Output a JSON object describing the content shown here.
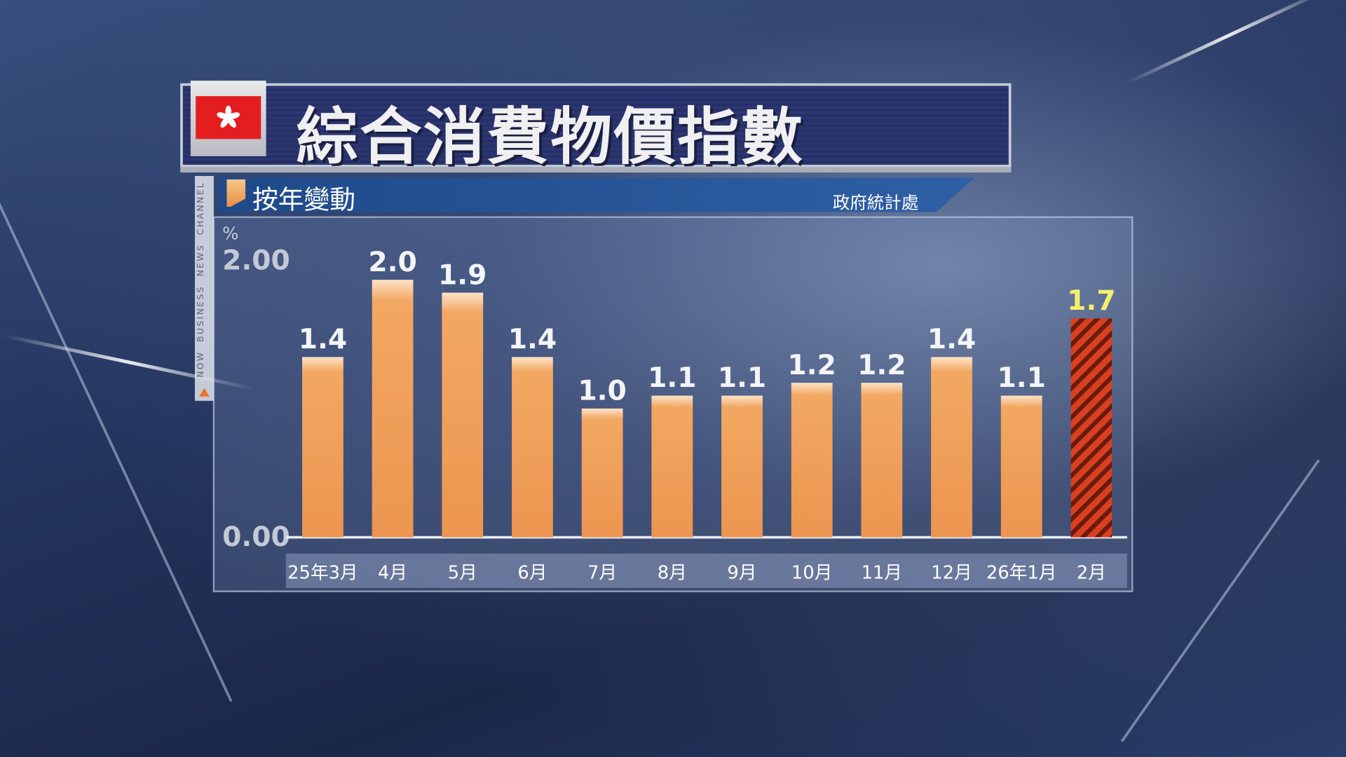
{
  "header": {
    "title": "綜合消費物價指數",
    "subtitle": "按年變動",
    "source": "政府統計處"
  },
  "branding": {
    "channel": "NOW BUSINESS NEWS CHANNEL"
  },
  "colors": {
    "bar": "#ee9a52",
    "highlight_bar": "#d23a1e",
    "highlight_stripe": "#6a1a10",
    "highlight_label": "#f4f06a",
    "title_bar": "#2a3470"
  },
  "chart_data": {
    "type": "bar",
    "title": "綜合消費物價指數",
    "subtitle": "按年變動",
    "ylabel": "%",
    "ylim": [
      0,
      2.0
    ],
    "yticks": [
      "0.00",
      "2.00"
    ],
    "grid": false,
    "categories": [
      "25年3月",
      "4月",
      "5月",
      "6月",
      "7月",
      "8月",
      "9月",
      "10月",
      "11月",
      "12月",
      "26年1月",
      "2月"
    ],
    "values": [
      1.4,
      2.0,
      1.9,
      1.4,
      1.0,
      1.1,
      1.1,
      1.2,
      1.2,
      1.4,
      1.1,
      1.7
    ],
    "labels": [
      "1.4",
      "2.0",
      "1.9",
      "1.4",
      "1.0",
      "1.1",
      "1.1",
      "1.2",
      "1.2",
      "1.4",
      "1.1",
      "1.7"
    ],
    "highlight_index": 11
  }
}
